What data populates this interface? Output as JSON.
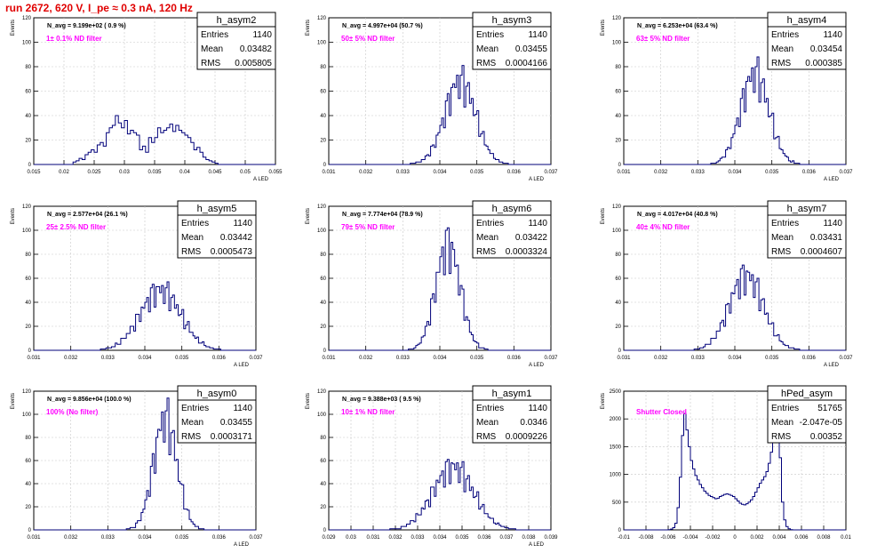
{
  "page": {
    "title": "run 2672,   620 V, I_pe ≈ 0.3 nA, 120 Hz",
    "colors": {
      "hist_line": "#00007a",
      "annotation": "#ff00ff",
      "title": "#e00000",
      "axes": "#000000",
      "grid": "#c8c8c8"
    }
  },
  "chart_data": [
    {
      "type": "bar",
      "name": "h_asym2",
      "stats": {
        "entries": "1140",
        "mean": "0.03482",
        "rms": "0.005805"
      },
      "navg": "N_avg = 9.199e+02 ( 0.9 %)",
      "annotation": "1± 0.1% ND filter",
      "xlabel": "A_LED",
      "ylabel": "Events",
      "xlim": [
        0.015,
        0.055
      ],
      "ylim": [
        0,
        120
      ],
      "xticks": [
        "0.015",
        "0.02",
        "0.025",
        "0.03",
        "0.035",
        "0.04",
        "0.045",
        "0.05",
        "0.055"
      ],
      "yticks": [
        "0",
        "20",
        "40",
        "60",
        "80",
        "100",
        "120"
      ],
      "grid": true,
      "hist": {
        "mu": 0.0348,
        "sigma": 0.0058,
        "peak": 42,
        "counts": [
          0,
          0,
          0,
          0,
          0,
          0,
          0,
          0,
          0,
          0,
          0,
          0,
          0,
          2,
          3,
          5,
          4,
          8,
          10,
          12,
          10,
          16,
          18,
          15,
          26,
          30,
          32,
          40,
          34,
          30,
          36,
          25,
          28,
          26,
          24,
          12,
          15,
          10,
          22,
          18,
          22,
          30,
          26,
          28,
          30,
          33,
          27,
          32,
          28,
          26,
          24,
          22,
          18,
          12,
          14,
          10,
          6,
          4,
          3,
          2,
          1,
          0,
          0,
          0,
          0,
          0,
          0,
          0,
          0,
          0,
          0,
          0,
          0,
          0,
          0,
          0,
          0,
          0,
          0,
          0
        ]
      }
    },
    {
      "type": "bar",
      "name": "h_asym3",
      "stats": {
        "entries": "1140",
        "mean": "0.03455",
        "rms": "0.0004166"
      },
      "navg": "N_avg = 4.997e+04 (50.7 %)",
      "annotation": "50± 5% ND filter",
      "xlabel": "A_LED",
      "ylabel": "Events",
      "xlim": [
        0.031,
        0.037
      ],
      "ylim": [
        0,
        120
      ],
      "xticks": [
        "0.031",
        "0.032",
        "0.033",
        "0.034",
        "0.035",
        "0.036",
        "0.037"
      ],
      "yticks": [
        "0",
        "20",
        "40",
        "60",
        "80",
        "100",
        "120"
      ],
      "grid": true,
      "hist": {
        "mu": 0.03455,
        "sigma": 0.000417,
        "peak": 68
      }
    },
    {
      "type": "bar",
      "name": "h_asym4",
      "stats": {
        "entries": "1140",
        "mean": "0.03454",
        "rms": "0.000385"
      },
      "navg": "N_avg = 6.253e+04 (63.4 %)",
      "annotation": "63± 5% ND filter",
      "xlabel": "A_LED",
      "ylabel": "Events",
      "xlim": [
        0.031,
        0.037
      ],
      "ylim": [
        0,
        120
      ],
      "xticks": [
        "0.031",
        "0.032",
        "0.033",
        "0.034",
        "0.035",
        "0.036",
        "0.037"
      ],
      "yticks": [
        "0",
        "20",
        "40",
        "60",
        "80",
        "100",
        "120"
      ],
      "grid": true,
      "hist": {
        "mu": 0.03454,
        "sigma": 0.000385,
        "peak": 74
      }
    },
    {
      "type": "bar",
      "name": "h_asym5",
      "stats": {
        "entries": "1140",
        "mean": "0.03442",
        "rms": "0.0005473"
      },
      "navg": "N_avg = 2.577e+04 (26.1 %)",
      "annotation": "25± 2.5% ND filter",
      "xlabel": "A_LED",
      "ylabel": "Events",
      "xlim": [
        0.031,
        0.037
      ],
      "ylim": [
        0,
        120
      ],
      "xticks": [
        "0.031",
        "0.032",
        "0.033",
        "0.034",
        "0.035",
        "0.036",
        "0.037"
      ],
      "yticks": [
        "0",
        "20",
        "40",
        "60",
        "80",
        "100",
        "120"
      ],
      "grid": true,
      "hist": {
        "mu": 0.03442,
        "sigma": 0.000547,
        "peak": 50
      }
    },
    {
      "type": "bar",
      "name": "h_asym6",
      "stats": {
        "entries": "1140",
        "mean": "0.03422",
        "rms": "0.0003324"
      },
      "navg": "N_avg = 7.774e+04 (78.9 %)",
      "annotation": "79± 5% ND filter",
      "xlabel": "A_LED",
      "ylabel": "Events",
      "xlim": [
        0.031,
        0.037
      ],
      "ylim": [
        0,
        120
      ],
      "xticks": [
        "0.031",
        "0.032",
        "0.033",
        "0.034",
        "0.035",
        "0.036",
        "0.037"
      ],
      "yticks": [
        "0",
        "20",
        "40",
        "60",
        "80",
        "100",
        "120"
      ],
      "grid": true,
      "hist": {
        "mu": 0.03422,
        "sigma": 0.000332,
        "peak": 88
      }
    },
    {
      "type": "bar",
      "name": "h_asym7",
      "stats": {
        "entries": "1140",
        "mean": "0.03431",
        "rms": "0.0004607"
      },
      "navg": "N_avg = 4.017e+04 (40.8 %)",
      "annotation": "40± 4% ND filter",
      "xlabel": "A_LED",
      "ylabel": "Events",
      "xlim": [
        0.031,
        0.037
      ],
      "ylim": [
        0,
        120
      ],
      "xticks": [
        "0.031",
        "0.032",
        "0.033",
        "0.034",
        "0.035",
        "0.036",
        "0.037"
      ],
      "yticks": [
        "0",
        "20",
        "40",
        "60",
        "80",
        "100",
        "120"
      ],
      "grid": true,
      "hist": {
        "mu": 0.03431,
        "sigma": 0.000461,
        "peak": 62
      }
    },
    {
      "type": "bar",
      "name": "h_asym0",
      "stats": {
        "entries": "1140",
        "mean": "0.03455",
        "rms": "0.0003171"
      },
      "navg": "N_avg = 9.856e+04 (100.0 %)",
      "annotation": "100% (No filter)",
      "xlabel": "A_LED",
      "ylabel": "Events",
      "xlim": [
        0.031,
        0.037
      ],
      "ylim": [
        0,
        120
      ],
      "xticks": [
        "0.031",
        "0.032",
        "0.033",
        "0.034",
        "0.035",
        "0.036",
        "0.037"
      ],
      "yticks": [
        "0",
        "20",
        "40",
        "60",
        "80",
        "100",
        "120"
      ],
      "grid": true,
      "hist": {
        "mu": 0.03455,
        "sigma": 0.000317,
        "peak": 96
      }
    },
    {
      "type": "bar",
      "name": "h_asym1",
      "stats": {
        "entries": "1140",
        "mean": "0.0346",
        "rms": "0.0009226"
      },
      "navg": "N_avg = 9.388e+03 ( 9.5 %)",
      "annotation": "10± 1% ND filter",
      "xlabel": "A_LED",
      "ylabel": "Events",
      "xlim": [
        0.029,
        0.039
      ],
      "ylim": [
        0,
        120
      ],
      "xticks": [
        "0.029",
        "0.03",
        "0.031",
        "0.032",
        "0.033",
        "0.034",
        "0.035",
        "0.036",
        "0.037",
        "0.038",
        "0.039"
      ],
      "yticks": [
        "0",
        "20",
        "40",
        "60",
        "80",
        "100",
        "120"
      ],
      "grid": true,
      "hist": {
        "mu": 0.0346,
        "sigma": 0.000923,
        "peak": 54
      }
    },
    {
      "type": "bar",
      "name": "hPed_asym",
      "stats": {
        "entries": "51765",
        "mean": "-2.047e-05",
        "rms": "0.00352"
      },
      "navg": "",
      "annotation": "Shutter Closed",
      "xlabel": "",
      "ylabel": "Events",
      "xlim": [
        -0.01,
        0.01
      ],
      "ylim": [
        0,
        2500
      ],
      "xticks": [
        "-0.01",
        "-0.008",
        "-0.006",
        "-0.004",
        "-0.002",
        "0",
        "0.002",
        "0.004",
        "0.006",
        "0.008",
        "0.01"
      ],
      "yticks": [
        "0",
        "500",
        "1000",
        "1500",
        "2000",
        "2500"
      ],
      "grid": true,
      "hist": {
        "counts": [
          0,
          0,
          0,
          0,
          0,
          0,
          0,
          0,
          0,
          0,
          0,
          0,
          0,
          0,
          0,
          0,
          0,
          0,
          0,
          0,
          5,
          15,
          40,
          120,
          400,
          950,
          1700,
          2100,
          1800,
          1500,
          1250,
          1100,
          980,
          900,
          820,
          760,
          700,
          660,
          620,
          600,
          580,
          560,
          570,
          600,
          620,
          640,
          650,
          640,
          620,
          600,
          560,
          520,
          480,
          460,
          450,
          470,
          500,
          540,
          600,
          680,
          760,
          840,
          900,
          960,
          1050,
          1200,
          1400,
          1800,
          2200,
          2300,
          1300,
          500,
          180,
          60,
          20,
          5,
          0,
          0,
          0,
          0,
          0,
          0,
          0,
          0,
          0,
          0,
          0,
          0,
          0,
          0,
          0,
          0,
          0,
          0,
          0,
          0,
          0,
          0,
          0,
          0
        ]
      }
    }
  ]
}
